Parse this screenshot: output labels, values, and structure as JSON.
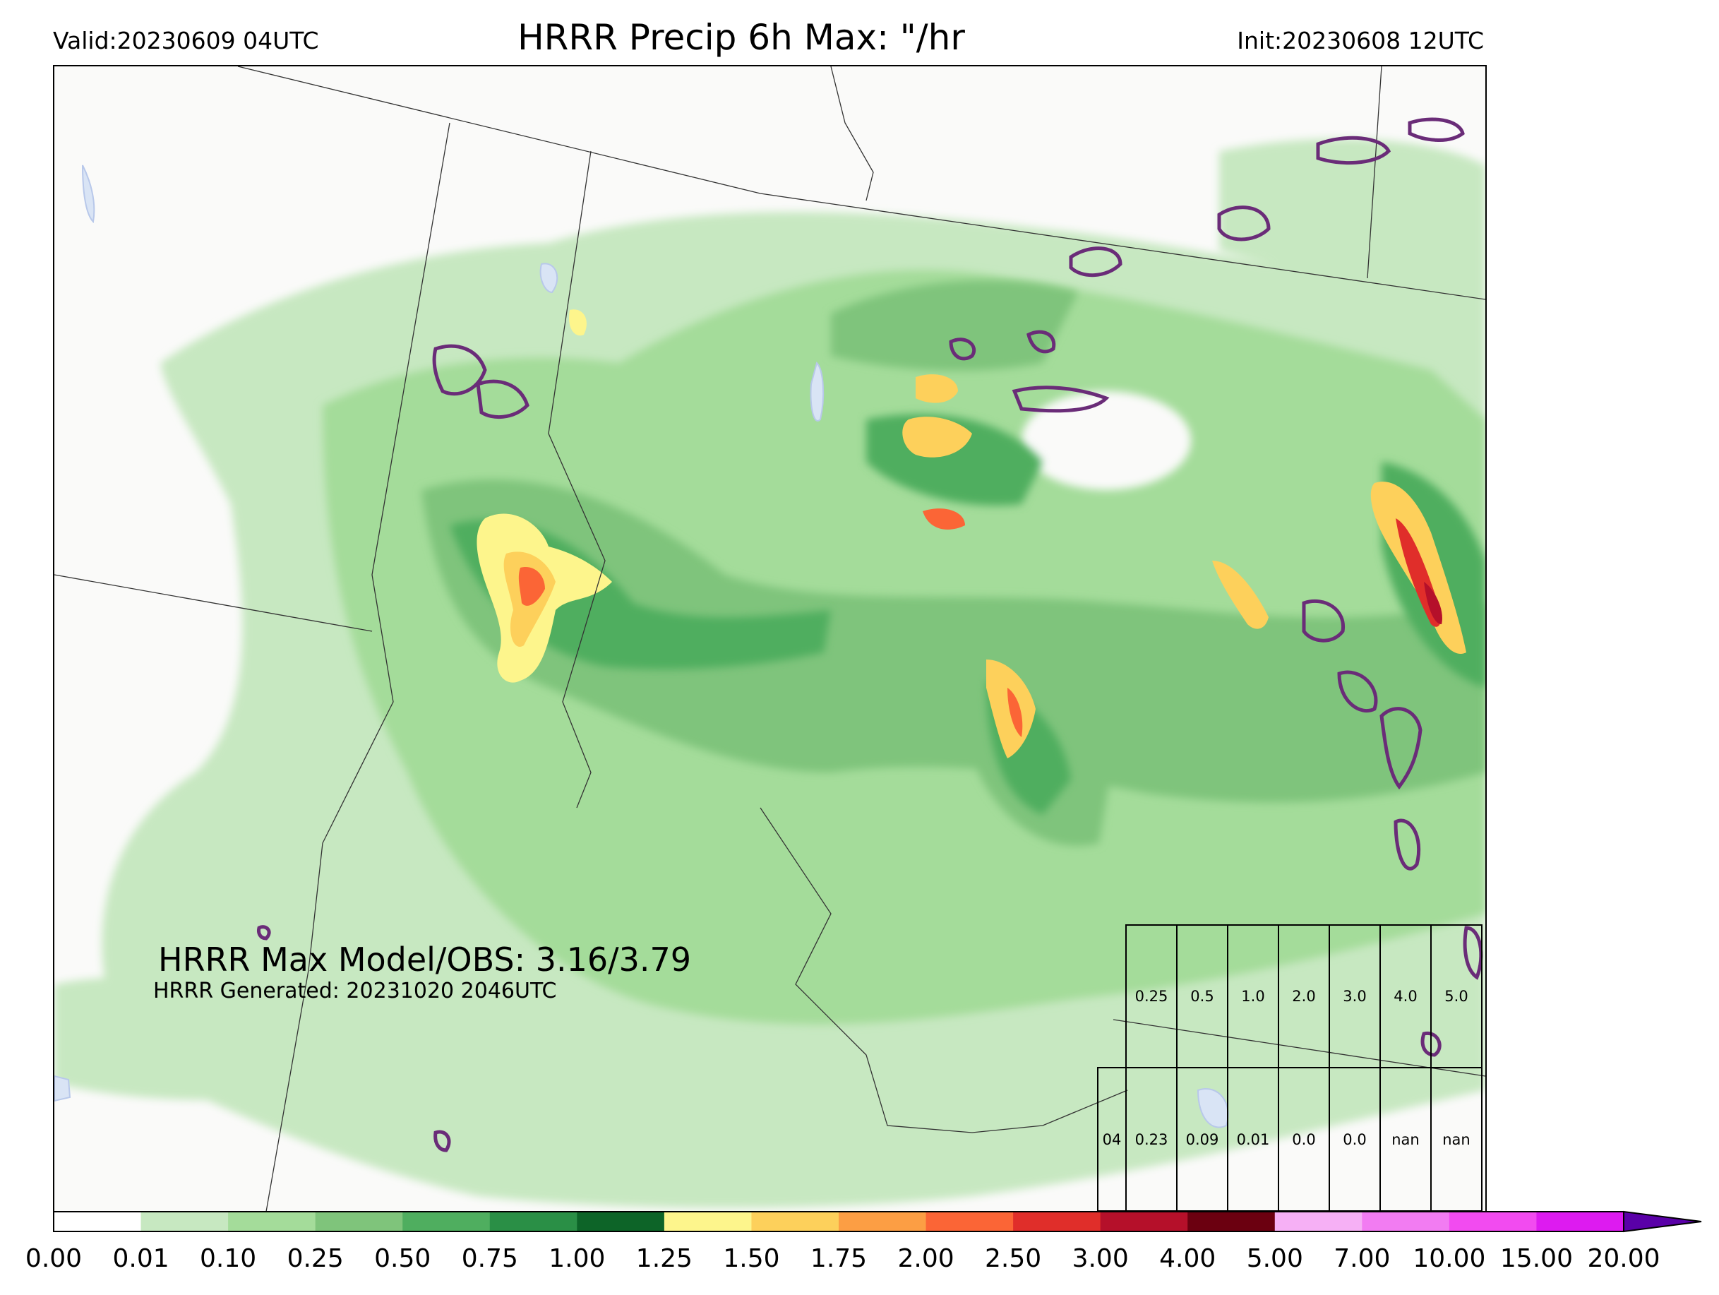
{
  "header": {
    "valid": "Valid:20230609 04UTC",
    "title": "HRRR Precip 6h Max: \"/hr",
    "init": "Init:20230608 12UTC"
  },
  "stats": {
    "model_obs": "HRRR Max Model/OBS: 3.16/3.79",
    "generated": "HRRR Generated: 20231020 2046UTC"
  },
  "threshold_table": {
    "thresholds": [
      "0.25",
      "0.5",
      "1.0",
      "2.0",
      "3.0",
      "4.0",
      "5.0"
    ],
    "row_label": "04",
    "values": [
      "0.23",
      "0.09",
      "0.01",
      "0.0",
      "0.0",
      "nan",
      "nan"
    ]
  },
  "colorbar": {
    "ticks": [
      "0.00",
      "0.01",
      "0.10",
      "0.25",
      "0.50",
      "0.75",
      "1.00",
      "1.25",
      "1.50",
      "1.75",
      "2.00",
      "2.50",
      "3.00",
      "4.00",
      "5.00",
      "7.00",
      "10.00",
      "15.00",
      "20.00"
    ],
    "colors": [
      "#ffffff",
      "#c7e8c1",
      "#a4dc9a",
      "#7fc47b",
      "#4fae5f",
      "#2a8f46",
      "#0d6428",
      "#fdf58c",
      "#fdd05b",
      "#fc9e44",
      "#fb6536",
      "#e02e2a",
      "#b5102a",
      "#6b0010",
      "#f6b0f5",
      "#f27cf2",
      "#f24bf0",
      "#dd1bf0",
      "#a618f2"
    ],
    "extend_color": "#5a00a8"
  },
  "legend_colors": {
    "map_background": "#fafaf9",
    "observed_contour": "#6a2c78",
    "boundary_line": "#333333",
    "water": "#d9e4f5"
  }
}
